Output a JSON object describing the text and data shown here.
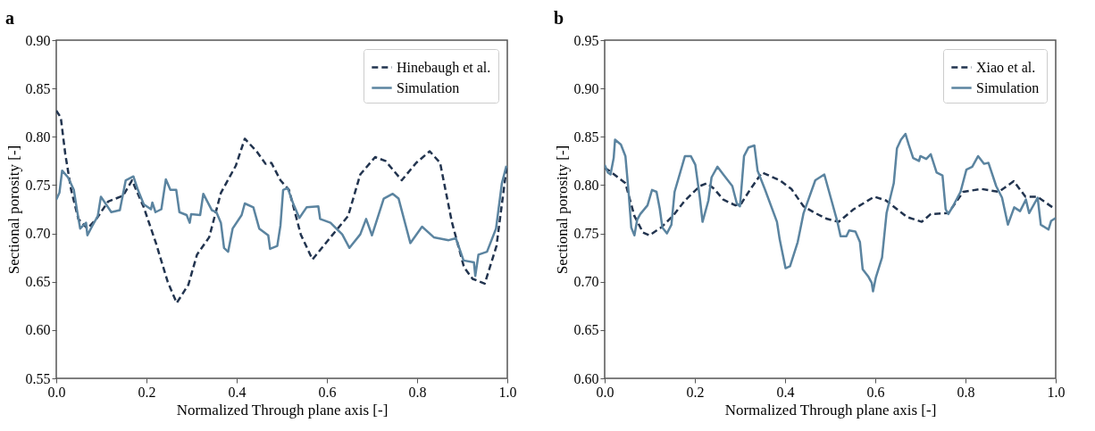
{
  "chart_data": [
    {
      "type": "line",
      "title": "a",
      "xlabel": "Normalized Through plane axis [-]",
      "ylabel": "Sectional porosity [-]",
      "legend": "top right",
      "grid": false,
      "xlim": [
        0,
        1
      ],
      "ylim": [
        0.55,
        0.9
      ],
      "xticks": [
        {
          "value": 0,
          "label": "0.0"
        },
        {
          "value": 0.2,
          "label": "0.2"
        },
        {
          "value": 0.4,
          "label": "0.4"
        },
        {
          "value": 0.6,
          "label": "0.6"
        },
        {
          "value": 0.8,
          "label": "0.8"
        },
        {
          "value": 1,
          "label": "1.0"
        }
      ],
      "yticks": [
        {
          "value": 0.55,
          "label": "0.55"
        },
        {
          "value": 0.6,
          "label": "0.60"
        },
        {
          "value": 0.65,
          "label": "0.65"
        },
        {
          "value": 0.7,
          "label": "0.70"
        },
        {
          "value": 0.75,
          "label": "0.75"
        },
        {
          "value": 0.8,
          "label": "0.80"
        },
        {
          "value": 0.85,
          "label": "0.85"
        },
        {
          "value": 0.9,
          "label": "0.90"
        }
      ],
      "series": [
        {
          "name": "Hinebaugh et al.",
          "color": "#22344f",
          "line_style": "dashed",
          "x": [
            0,
            0.01,
            0.02,
            0.033,
            0.049,
            0.069,
            0.089,
            0.115,
            0.148,
            0.168,
            0.194,
            0.221,
            0.247,
            0.267,
            0.293,
            0.312,
            0.339,
            0.365,
            0.398,
            0.418,
            0.444,
            0.464,
            0.477,
            0.497,
            0.516,
            0.542,
            0.568,
            0.608,
            0.647,
            0.674,
            0.707,
            0.73,
            0.766,
            0.798,
            0.828,
            0.851,
            0.877,
            0.904,
            0.923,
            0.95,
            0.976,
            0.999
          ],
          "values": [
            0.827,
            0.82,
            0.782,
            0.745,
            0.715,
            0.705,
            0.715,
            0.733,
            0.739,
            0.755,
            0.727,
            0.69,
            0.65,
            0.628,
            0.647,
            0.678,
            0.696,
            0.742,
            0.77,
            0.798,
            0.785,
            0.772,
            0.773,
            0.755,
            0.745,
            0.699,
            0.673,
            0.696,
            0.718,
            0.761,
            0.779,
            0.775,
            0.755,
            0.773,
            0.785,
            0.773,
            0.712,
            0.665,
            0.653,
            0.648,
            0.687,
            0.77
          ]
        },
        {
          "name": "Simulation",
          "color": "#5b84a0",
          "line_style": "solid",
          "x": [
            0,
            0.007,
            0.013,
            0.026,
            0.039,
            0.046,
            0.053,
            0.066,
            0.069,
            0.079,
            0.092,
            0.099,
            0.122,
            0.141,
            0.154,
            0.171,
            0.181,
            0.194,
            0.21,
            0.213,
            0.22,
            0.233,
            0.243,
            0.253,
            0.266,
            0.273,
            0.289,
            0.296,
            0.299,
            0.319,
            0.326,
            0.345,
            0.355,
            0.365,
            0.372,
            0.381,
            0.391,
            0.411,
            0.418,
            0.437,
            0.45,
            0.47,
            0.474,
            0.49,
            0.497,
            0.503,
            0.513,
            0.526,
            0.539,
            0.555,
            0.581,
            0.585,
            0.608,
            0.634,
            0.65,
            0.674,
            0.687,
            0.7,
            0.726,
            0.746,
            0.759,
            0.785,
            0.811,
            0.837,
            0.87,
            0.886,
            0.903,
            0.926,
            0.929,
            0.936,
            0.955,
            0.975,
            0.988,
            0.998
          ],
          "values": [
            0.735,
            0.742,
            0.765,
            0.758,
            0.745,
            0.724,
            0.705,
            0.711,
            0.698,
            0.707,
            0.718,
            0.738,
            0.722,
            0.724,
            0.755,
            0.759,
            0.745,
            0.73,
            0.725,
            0.732,
            0.722,
            0.725,
            0.756,
            0.745,
            0.745,
            0.722,
            0.719,
            0.711,
            0.72,
            0.719,
            0.741,
            0.724,
            0.722,
            0.711,
            0.685,
            0.681,
            0.705,
            0.719,
            0.731,
            0.727,
            0.705,
            0.698,
            0.684,
            0.687,
            0.708,
            0.745,
            0.747,
            0.73,
            0.716,
            0.727,
            0.728,
            0.715,
            0.711,
            0.699,
            0.685,
            0.699,
            0.715,
            0.698,
            0.736,
            0.741,
            0.736,
            0.69,
            0.707,
            0.696,
            0.693,
            0.695,
            0.672,
            0.67,
            0.656,
            0.678,
            0.681,
            0.705,
            0.752,
            0.77
          ]
        }
      ]
    },
    {
      "type": "line",
      "title": "b",
      "xlabel": "Normalized Through plane axis [-]",
      "ylabel": "Sectional porosity [-]",
      "legend": "top right",
      "grid": false,
      "xlim": [
        0,
        1
      ],
      "ylim": [
        0.6,
        0.95
      ],
      "xticks": [
        {
          "value": 0,
          "label": "0.0"
        },
        {
          "value": 0.2,
          "label": "0.2"
        },
        {
          "value": 0.4,
          "label": "0.4"
        },
        {
          "value": 0.6,
          "label": "0.6"
        },
        {
          "value": 0.8,
          "label": "0.8"
        },
        {
          "value": 1,
          "label": "1.0"
        }
      ],
      "yticks": [
        {
          "value": 0.6,
          "label": "0.60"
        },
        {
          "value": 0.65,
          "label": "0.65"
        },
        {
          "value": 0.7,
          "label": "0.70"
        },
        {
          "value": 0.75,
          "label": "0.75"
        },
        {
          "value": 0.8,
          "label": "0.80"
        },
        {
          "value": 0.85,
          "label": "0.85"
        },
        {
          "value": 0.9,
          "label": "0.90"
        },
        {
          "value": 0.95,
          "label": "0.95"
        }
      ],
      "series": [
        {
          "name": "Xiao et al.",
          "color": "#22344f",
          "line_style": "dashed",
          "x": [
            0,
            0.01,
            0.046,
            0.066,
            0.085,
            0.099,
            0.125,
            0.151,
            0.178,
            0.211,
            0.227,
            0.243,
            0.263,
            0.29,
            0.303,
            0.322,
            0.349,
            0.388,
            0.414,
            0.441,
            0.467,
            0.493,
            0.519,
            0.552,
            0.598,
            0.624,
            0.67,
            0.703,
            0.723,
            0.762,
            0.795,
            0.835,
            0.874,
            0.907,
            0.933,
            0.959,
            0.996
          ],
          "values": [
            0.818,
            0.815,
            0.802,
            0.768,
            0.751,
            0.748,
            0.756,
            0.768,
            0.784,
            0.799,
            0.802,
            0.796,
            0.785,
            0.779,
            0.781,
            0.795,
            0.813,
            0.805,
            0.796,
            0.778,
            0.771,
            0.765,
            0.762,
            0.775,
            0.788,
            0.784,
            0.767,
            0.762,
            0.77,
            0.771,
            0.793,
            0.796,
            0.793,
            0.804,
            0.788,
            0.788,
            0.776
          ]
        },
        {
          "name": "Simulation",
          "color": "#5b84a0",
          "line_style": "solid",
          "x": [
            0,
            0.007,
            0.013,
            0.02,
            0.023,
            0.036,
            0.046,
            0.053,
            0.059,
            0.066,
            0.072,
            0.079,
            0.095,
            0.105,
            0.115,
            0.122,
            0.128,
            0.138,
            0.148,
            0.155,
            0.178,
            0.191,
            0.201,
            0.211,
            0.217,
            0.23,
            0.237,
            0.25,
            0.263,
            0.283,
            0.293,
            0.3,
            0.309,
            0.319,
            0.332,
            0.339,
            0.355,
            0.382,
            0.388,
            0.401,
            0.411,
            0.428,
            0.441,
            0.467,
            0.487,
            0.503,
            0.516,
            0.523,
            0.536,
            0.542,
            0.556,
            0.566,
            0.572,
            0.585,
            0.592,
            0.595,
            0.601,
            0.615,
            0.625,
            0.641,
            0.648,
            0.657,
            0.667,
            0.674,
            0.684,
            0.697,
            0.7,
            0.713,
            0.723,
            0.736,
            0.749,
            0.756,
            0.762,
            0.772,
            0.789,
            0.802,
            0.815,
            0.828,
            0.841,
            0.851,
            0.868,
            0.881,
            0.894,
            0.908,
            0.921,
            0.934,
            0.941,
            0.96,
            0.967,
            0.984,
            0.99,
            1.0
          ],
          "values": [
            0.821,
            0.813,
            0.811,
            0.828,
            0.847,
            0.842,
            0.83,
            0.793,
            0.756,
            0.748,
            0.764,
            0.77,
            0.779,
            0.795,
            0.793,
            0.776,
            0.756,
            0.75,
            0.759,
            0.793,
            0.83,
            0.83,
            0.821,
            0.787,
            0.762,
            0.784,
            0.808,
            0.819,
            0.811,
            0.799,
            0.781,
            0.778,
            0.83,
            0.839,
            0.841,
            0.815,
            0.796,
            0.762,
            0.744,
            0.714,
            0.716,
            0.741,
            0.771,
            0.805,
            0.811,
            0.784,
            0.762,
            0.747,
            0.747,
            0.753,
            0.752,
            0.741,
            0.713,
            0.705,
            0.699,
            0.69,
            0.704,
            0.725,
            0.771,
            0.802,
            0.838,
            0.847,
            0.853,
            0.842,
            0.828,
            0.825,
            0.83,
            0.827,
            0.832,
            0.813,
            0.81,
            0.775,
            0.77,
            0.778,
            0.793,
            0.816,
            0.819,
            0.83,
            0.822,
            0.823,
            0.799,
            0.787,
            0.759,
            0.777,
            0.773,
            0.785,
            0.771,
            0.787,
            0.759,
            0.754,
            0.763,
            0.766
          ]
        }
      ]
    }
  ]
}
